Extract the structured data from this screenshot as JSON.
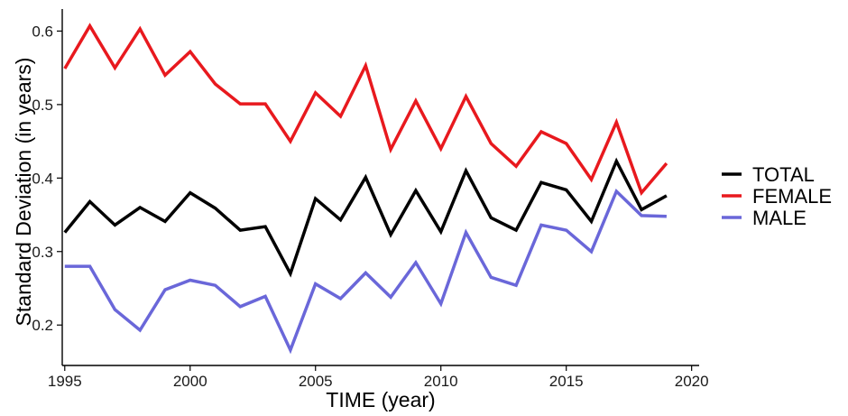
{
  "chart_data": {
    "type": "line",
    "title": "",
    "xlabel": "TIME (year)",
    "ylabel": "Standard Deviation (in years)",
    "xlim": [
      1994.9,
      2020.3
    ],
    "ylim": [
      0.145,
      0.63
    ],
    "x_ticks": [
      1995,
      2000,
      2005,
      2010,
      2015,
      2020
    ],
    "y_ticks": [
      0.2,
      0.3,
      0.4,
      0.5,
      0.6
    ],
    "grid": false,
    "legend_position": "right",
    "x": [
      1995,
      1996,
      1997,
      1998,
      1999,
      2000,
      2001,
      2002,
      2003,
      2004,
      2005,
      2006,
      2007,
      2008,
      2009,
      2010,
      2011,
      2012,
      2013,
      2014,
      2015,
      2016,
      2017,
      2018,
      2019
    ],
    "series": [
      {
        "name": "TOTAL",
        "color": "#000000",
        "values": [
          0.326,
          0.368,
          0.336,
          0.36,
          0.341,
          0.38,
          0.359,
          0.329,
          0.334,
          0.27,
          0.372,
          0.343,
          0.401,
          0.323,
          0.383,
          0.327,
          0.41,
          0.346,
          0.329,
          0.394,
          0.384,
          0.341,
          0.423,
          0.357,
          0.376
        ]
      },
      {
        "name": "FEMALE",
        "color": "#e8191e",
        "values": [
          0.549,
          0.607,
          0.55,
          0.603,
          0.54,
          0.572,
          0.528,
          0.501,
          0.501,
          0.45,
          0.516,
          0.484,
          0.553,
          0.439,
          0.505,
          0.44,
          0.511,
          0.447,
          0.416,
          0.463,
          0.447,
          0.398,
          0.476,
          0.38,
          0.42
        ]
      },
      {
        "name": "MALE",
        "color": "#6a67d9",
        "values": [
          0.28,
          0.28,
          0.221,
          0.193,
          0.248,
          0.261,
          0.254,
          0.225,
          0.239,
          0.166,
          0.256,
          0.236,
          0.271,
          0.238,
          0.285,
          0.229,
          0.326,
          0.265,
          0.254,
          0.336,
          0.329,
          0.3,
          0.382,
          0.349,
          0.348
        ]
      }
    ]
  }
}
